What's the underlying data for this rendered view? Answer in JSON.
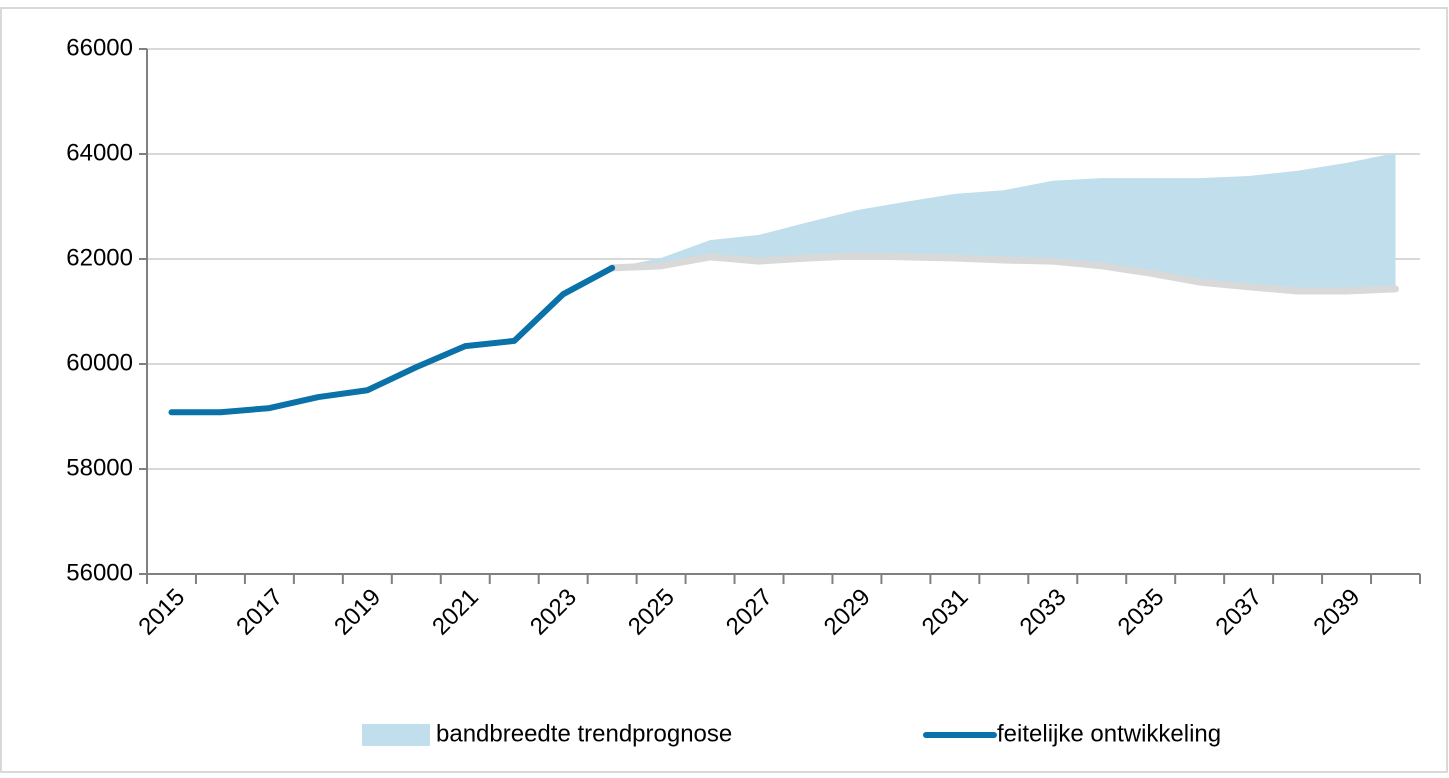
{
  "chart_data": {
    "type": "line",
    "categories": [
      "2015",
      null,
      "2017",
      null,
      "2019",
      null,
      "2021",
      null,
      "2023",
      null,
      "2025",
      null,
      "2027",
      null,
      "2029",
      null,
      "2031",
      null,
      "2033",
      null,
      "2035",
      null,
      "2037",
      null,
      "2039",
      null
    ],
    "series": [
      {
        "name": "bandbreedte trendprognose",
        "color": "#c0deeb",
        "edge_color": "#d9d9d9",
        "lower": [
          null,
          null,
          null,
          null,
          null,
          null,
          null,
          null,
          null,
          61830,
          61870,
          62040,
          61960,
          62020,
          62060,
          62040,
          62020,
          61980,
          61960,
          61870,
          61730,
          61560,
          61470,
          61390,
          61390,
          61430
        ],
        "upper": [
          null,
          null,
          null,
          null,
          null,
          null,
          null,
          null,
          null,
          61830,
          62020,
          62360,
          62460,
          62700,
          62930,
          63090,
          63240,
          63310,
          63490,
          63540,
          63540,
          63540,
          63580,
          63680,
          63830,
          64020
        ]
      },
      {
        "name": "feitelijke ontwikkeling",
        "color": "#0a72a8",
        "values": [
          59080,
          59080,
          59160,
          59370,
          59500,
          59940,
          60340,
          60440,
          61330,
          61830,
          null,
          null,
          null,
          null,
          null,
          null,
          null,
          null,
          null,
          null,
          null,
          null,
          null,
          null,
          null,
          null
        ]
      }
    ],
    "ylim": [
      56000,
      66000
    ],
    "yticks": [
      56000,
      58000,
      60000,
      62000,
      64000,
      66000
    ],
    "grid": true
  }
}
